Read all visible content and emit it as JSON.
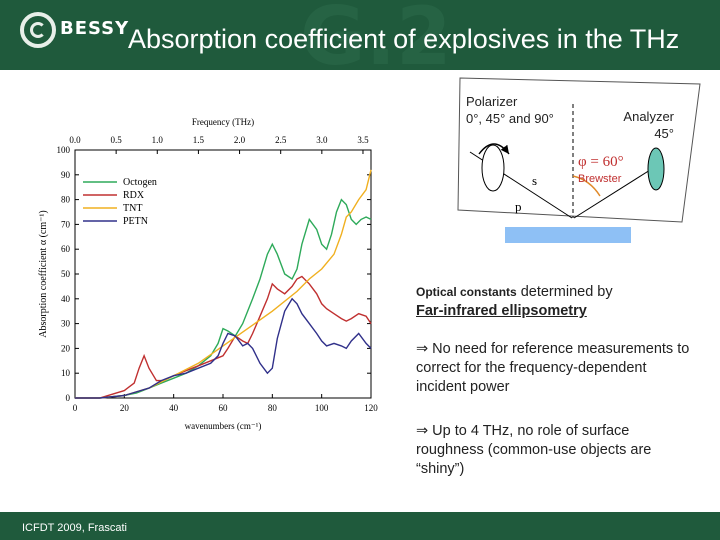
{
  "header": {
    "logo_text": "BESSY",
    "title": "Absorption coefficient of explosives in the THz"
  },
  "footer": {
    "label": "ICFDT 2009, Frascati"
  },
  "chart_data": {
    "type": "line",
    "xlabel": "wavenumbers (cm⁻¹)",
    "ylabel": "Absorption coefficient α (cm⁻¹)",
    "top_axis_label": "Frequency (THz)",
    "xlim": [
      0,
      120
    ],
    "ylim": [
      0,
      100
    ],
    "x_ticks": [
      "0",
      "20",
      "40",
      "60",
      "80",
      "100",
      "120"
    ],
    "y_ticks": [
      "0",
      "10",
      "20",
      "30",
      "40",
      "50",
      "60",
      "70",
      "80",
      "90",
      "100"
    ],
    "top_ticks": [
      "0.0",
      "0.5",
      "1.0",
      "1.5",
      "2.0",
      "2.5",
      "3.0",
      "3.5"
    ],
    "legend_position": "upper-left",
    "series": [
      {
        "name": "Octogen",
        "color": "#2eaa5a",
        "x": [
          0,
          10,
          20,
          25,
          30,
          35,
          40,
          45,
          50,
          55,
          58,
          60,
          62,
          65,
          68,
          72,
          75,
          78,
          80,
          82,
          85,
          88,
          90,
          92,
          95,
          98,
          100,
          102,
          104,
          106,
          108,
          110,
          112,
          114,
          116,
          118,
          120
        ],
        "y": [
          0,
          0,
          1,
          2,
          4,
          6,
          8,
          10,
          13,
          17,
          22,
          28,
          27,
          25,
          30,
          40,
          48,
          58,
          62,
          58,
          50,
          48,
          52,
          62,
          72,
          68,
          62,
          60,
          66,
          75,
          80,
          78,
          72,
          70,
          72,
          73,
          72
        ]
      },
      {
        "name": "RDX",
        "color": "#c03030",
        "x": [
          0,
          10,
          20,
          24,
          26,
          28,
          30,
          33,
          36,
          40,
          45,
          50,
          55,
          60,
          62,
          65,
          68,
          70,
          72,
          75,
          78,
          80,
          82,
          85,
          88,
          90,
          92,
          95,
          98,
          100,
          102,
          105,
          108,
          110,
          112,
          115,
          118,
          120
        ],
        "y": [
          0,
          0,
          3,
          6,
          12,
          17,
          12,
          7,
          7,
          9,
          11,
          13,
          15,
          17,
          20,
          25,
          23,
          22,
          26,
          33,
          40,
          46,
          44,
          42,
          45,
          48,
          49,
          46,
          42,
          38,
          36,
          34,
          32,
          31,
          32,
          34,
          33,
          30
        ]
      },
      {
        "name": "TNT",
        "color": "#f0b020",
        "x": [
          0,
          10,
          20,
          30,
          40,
          50,
          60,
          70,
          80,
          90,
          95,
          100,
          105,
          108,
          110,
          112,
          115,
          118,
          120
        ],
        "y": [
          0,
          0,
          1,
          4,
          9,
          14,
          21,
          28,
          35,
          43,
          48,
          52,
          58,
          66,
          73,
          75,
          80,
          84,
          92
        ]
      },
      {
        "name": "PETN",
        "color": "#30308a",
        "x": [
          0,
          10,
          20,
          30,
          35,
          40,
          45,
          50,
          55,
          58,
          60,
          62,
          65,
          68,
          70,
          72,
          75,
          78,
          80,
          82,
          85,
          88,
          90,
          92,
          95,
          98,
          100,
          102,
          105,
          108,
          110,
          112,
          115,
          118,
          120
        ],
        "y": [
          0,
          0,
          1,
          4,
          7,
          9,
          10,
          12,
          14,
          17,
          22,
          26,
          25,
          21,
          22,
          20,
          14,
          10,
          12,
          24,
          35,
          40,
          38,
          34,
          30,
          26,
          23,
          21,
          22,
          21,
          20,
          23,
          26,
          22,
          20
        ]
      }
    ]
  },
  "diagram": {
    "polarizer_label": "Polarizer\n0°, 45° and 90°",
    "analyzer_label": "Analyzer\n45°",
    "angle_label": "φ = 60°",
    "brewster_label": "Brewster",
    "s_label": "s",
    "p_label": "p"
  },
  "text": {
    "optical_constants": "Optical constants",
    "determined_by": " determined by",
    "ellipsometry": "Far-infrared ellipsometry",
    "point1": "⇒ No need for reference measurements to correct for the frequency-dependent incident power",
    "point2": "⇒ Up to 4 THz, no role of surface roughness (common-use objects are “shiny”)"
  }
}
